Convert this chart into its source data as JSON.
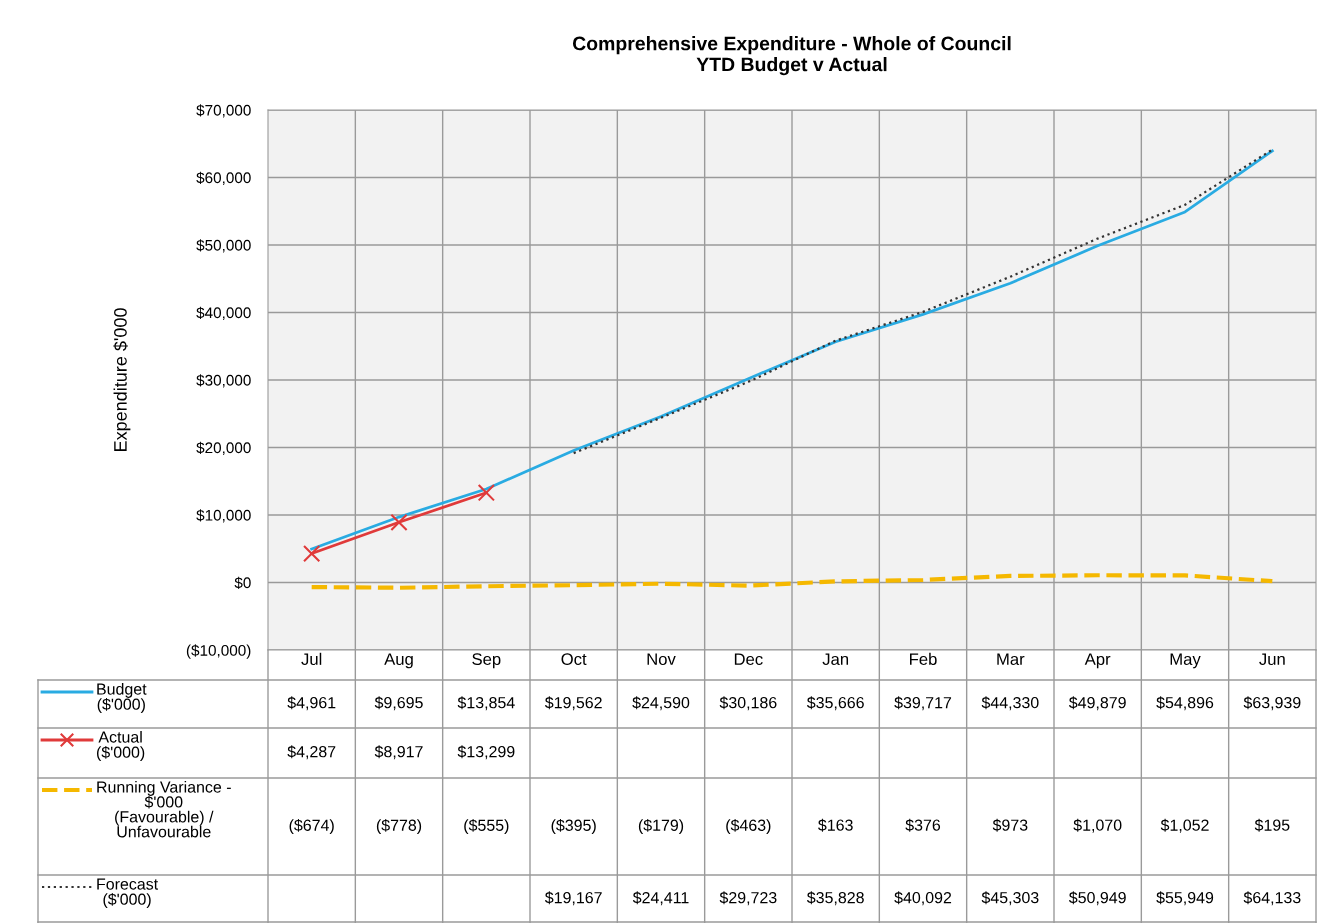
{
  "chart_data": {
    "type": "line",
    "title": "Comprehensive Expenditure - Whole of Council\nYTD Budget v Actual",
    "ylabel": "Expenditure $'000",
    "categories": [
      "Jul",
      "Aug",
      "Sep",
      "Oct",
      "Nov",
      "Dec",
      "Jan",
      "Feb",
      "Mar",
      "Apr",
      "May",
      "Jun"
    ],
    "ylim": [
      -10000,
      70000
    ],
    "yticks": [
      {
        "value": -10000,
        "label": "($10,000)"
      },
      {
        "value": 0,
        "label": "$0"
      },
      {
        "value": 10000,
        "label": "$10,000"
      },
      {
        "value": 20000,
        "label": "$20,000"
      },
      {
        "value": 30000,
        "label": "$30,000"
      },
      {
        "value": 40000,
        "label": "$40,000"
      },
      {
        "value": 50000,
        "label": "$50,000"
      },
      {
        "value": 60000,
        "label": "$60,000"
      },
      {
        "value": 70000,
        "label": "$70,000"
      }
    ],
    "grid": true,
    "legend": "bottom left",
    "series": [
      {
        "name": "Budget\n($'000)",
        "color": "#29abe2",
        "line_style": "solid",
        "marker": "none",
        "values": [
          4961,
          9695,
          13854,
          19562,
          24590,
          30186,
          35666,
          39717,
          44330,
          49879,
          54896,
          63939
        ],
        "value_labels": [
          "$4,961",
          "$9,695",
          "$13,854",
          "$19,562",
          "$24,590",
          "$30,186",
          "$35,666",
          "$39,717",
          "$44,330",
          "$49,879",
          "$54,896",
          "$63,939"
        ]
      },
      {
        "name": "Actual\n($'000)",
        "color": "#e03a3a",
        "line_style": "solid",
        "marker": "cross",
        "values": [
          4287,
          8917,
          13299,
          null,
          null,
          null,
          null,
          null,
          null,
          null,
          null,
          null
        ],
        "value_labels": [
          "$4,287",
          "$8,917",
          "$13,299",
          null,
          null,
          null,
          null,
          null,
          null,
          null,
          null,
          null
        ]
      },
      {
        "name": "Running Variance -\n$'000\n(Favourable) /\nUnfavourable",
        "color": "#f5b800",
        "line_style": "dashed",
        "marker": "none",
        "values": [
          -674,
          -778,
          -555,
          -395,
          -179,
          -463,
          163,
          376,
          973,
          1070,
          1052,
          195
        ],
        "value_labels": [
          "($674)",
          "($778)",
          "($555)",
          "($395)",
          "($179)",
          "($463)",
          "$163",
          "$376",
          "$973",
          "$1,070",
          "$1,052",
          "$195"
        ]
      },
      {
        "name": "Forecast\n($'000)",
        "color": "#333333",
        "line_style": "dotted",
        "marker": "none",
        "values": [
          null,
          null,
          null,
          19167,
          24411,
          29723,
          35828,
          40092,
          45303,
          50949,
          55949,
          64133
        ],
        "value_labels": [
          null,
          null,
          null,
          "$19,167",
          "$24,411",
          "$29,723",
          "$35,828",
          "$40,092",
          "$45,303",
          "$50,949",
          "$55,949",
          "$64,133"
        ]
      }
    ]
  }
}
